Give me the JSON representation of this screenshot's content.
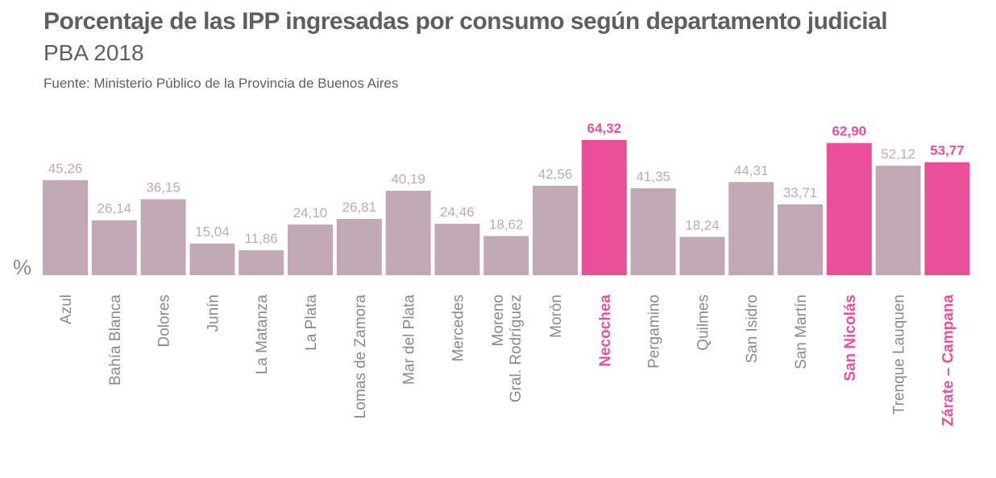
{
  "header": {
    "title": "Porcentaje de las IPP ingresadas por consumo según departamento judicial",
    "subtitle": "PBA 2018",
    "source": "Fuente: Ministerio Público de la Provincia de Buenos Aires"
  },
  "colors": {
    "bar": "#c1a8b4",
    "highlight": "#ec4f9a",
    "label": "#c1a8b4",
    "category": "#8a8a8a",
    "unit": "#8a8a8a"
  },
  "chart_data": {
    "type": "bar",
    "title": "Porcentaje de las IPP ingresadas por consumo según departamento judicial",
    "subtitle": "PBA 2018",
    "ylabel": "%",
    "ylim": [
      0,
      64.32
    ],
    "grid": false,
    "categories": [
      "Azul",
      "Bahía Blanca",
      "Dolores",
      "Junín",
      "La Matanza",
      "La Plata",
      "Lomas de Zamora",
      "Mar del Plata",
      "Mercedes",
      "Moreno\nGral. Rodríguez",
      "Morón",
      "Necochea",
      "Pergamino",
      "Quilmes",
      "San Isidro",
      "San Martín",
      "San Nicolás",
      "Trenque Lauquen",
      "Zárate – Campana"
    ],
    "values": [
      45.26,
      26.14,
      36.15,
      15.04,
      11.86,
      24.1,
      26.81,
      40.19,
      24.46,
      18.62,
      42.56,
      64.32,
      41.35,
      18.24,
      44.31,
      33.71,
      62.9,
      52.12,
      53.77
    ],
    "value_labels": [
      "45,26",
      "26,14",
      "36,15",
      "15,04",
      "11,86",
      "24,10",
      "26,81",
      "40,19",
      "24,46",
      "18,62",
      "42,56",
      "64,32",
      "41,35",
      "18,24",
      "44,31",
      "33,71",
      "62,90",
      "52,12",
      "53,77"
    ],
    "highlighted": [
      "Necochea",
      "San Nicolás",
      "Zárate – Campana"
    ]
  }
}
